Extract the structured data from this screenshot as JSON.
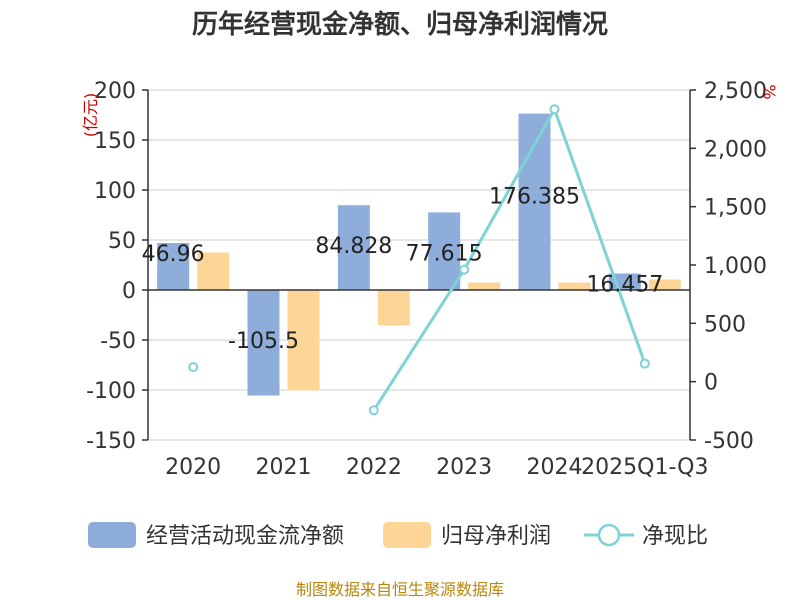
{
  "chart_data": {
    "type": "bar",
    "title": "历年经营现金净额、归母净利润情况",
    "categories": [
      "2020",
      "2021",
      "2022",
      "2023",
      "2024",
      "2025Q1-Q3"
    ],
    "series": [
      {
        "name": "经营活动现金流净额",
        "type": "bar",
        "axis": "left",
        "color": "#8EADDB",
        "values": [
          46.96,
          -105.5,
          84.828,
          77.615,
          176.385,
          16.457
        ],
        "labels": [
          "46.96",
          "-105.5",
          "84.828",
          "77.615",
          "176.385",
          "16.457"
        ]
      },
      {
        "name": "归母净利润",
        "type": "bar",
        "axis": "left",
        "color": "#FDD596",
        "values": [
          37.5,
          -100.5,
          -35.5,
          7.5,
          7.5,
          10.5
        ]
      },
      {
        "name": "净现比",
        "type": "line",
        "axis": "right",
        "color": "#7DD3D6",
        "values": [
          125,
          null,
          -245,
          960,
          2335,
          155
        ]
      }
    ],
    "left_axis": {
      "unit": "(亿元)",
      "min": -150,
      "max": 200,
      "step": 50,
      "ticks": [
        "-150",
        "-100",
        "-50",
        "0",
        "50",
        "100",
        "150",
        "200"
      ]
    },
    "right_axis": {
      "unit": "%",
      "min": -500,
      "max": 2500,
      "step": 500,
      "ticks": [
        "-500",
        "0",
        "500",
        "1,000",
        "1,500",
        "2,000",
        "2,500"
      ]
    },
    "legend_position": "bottom",
    "grid": true,
    "source": "制图数据来自恒生聚源数据库"
  }
}
